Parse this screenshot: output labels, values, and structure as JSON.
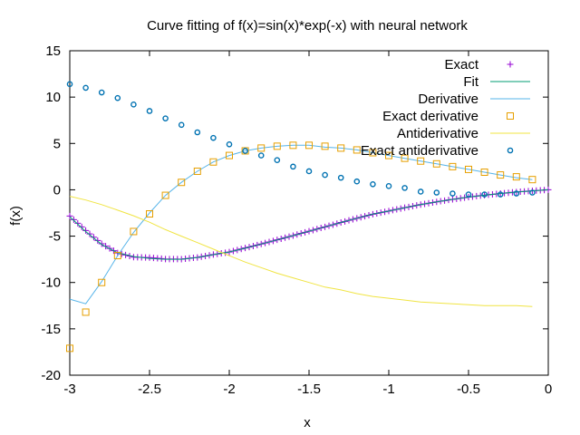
{
  "chart_data": {
    "type": "line",
    "title": "Curve fitting of f(x)=sin(x)*exp(-x) with neural network",
    "xlabel": "x",
    "ylabel": "f(x)",
    "xlim": [
      -3,
      0
    ],
    "ylim": [
      -20,
      15
    ],
    "xticks": [
      -3,
      -2.5,
      -2,
      -1.5,
      -1,
      -0.5,
      0
    ],
    "yticks": [
      -20,
      -15,
      -10,
      -5,
      0,
      5,
      10,
      15
    ],
    "grid": false,
    "legend_position": "top-right",
    "series": [
      {
        "name": "Exact",
        "style": "plus-markers",
        "color": "#9400d3",
        "x": [
          -3.0,
          -2.9,
          -2.8,
          -2.7,
          -2.6,
          -2.5,
          -2.4,
          -2.3,
          -2.2,
          -2.1,
          -2.0,
          -1.9,
          -1.8,
          -1.7,
          -1.6,
          -1.5,
          -1.4,
          -1.3,
          -1.2,
          -1.1,
          -1.0,
          -0.9,
          -0.8,
          -0.7,
          -0.6,
          -0.5,
          -0.4,
          -0.3,
          -0.2,
          -0.1,
          0.0
        ],
        "y": [
          -2.83,
          -4.4,
          -5.83,
          -6.81,
          -7.26,
          -7.31,
          -7.47,
          -7.48,
          -7.3,
          -6.99,
          -6.72,
          -6.28,
          -5.85,
          -5.4,
          -4.94,
          -4.47,
          -4.0,
          -3.53,
          -3.07,
          -2.63,
          -2.29,
          -1.93,
          -1.6,
          -1.3,
          -1.03,
          -0.79,
          -0.58,
          -0.4,
          -0.24,
          -0.11,
          0.0
        ]
      },
      {
        "name": "Fit",
        "style": "line",
        "color": "#009e73",
        "x": [
          -3.0,
          -2.9,
          -2.8,
          -2.7,
          -2.6,
          -2.5,
          -2.4,
          -2.3,
          -2.2,
          -2.1,
          -2.0,
          -1.9,
          -1.8,
          -1.7,
          -1.6,
          -1.5,
          -1.4,
          -1.3,
          -1.2,
          -1.1,
          -1.0,
          -0.9,
          -0.8,
          -0.7,
          -0.6,
          -0.5,
          -0.4,
          -0.3,
          -0.2,
          -0.1,
          0.0
        ],
        "y": [
          -2.9,
          -4.5,
          -5.9,
          -6.8,
          -7.2,
          -7.4,
          -7.5,
          -7.5,
          -7.3,
          -7.0,
          -6.7,
          -6.3,
          -5.85,
          -5.4,
          -4.94,
          -4.47,
          -4.0,
          -3.53,
          -3.07,
          -2.63,
          -2.29,
          -1.93,
          -1.6,
          -1.3,
          -1.03,
          -0.79,
          -0.58,
          -0.4,
          -0.24,
          -0.11,
          0.0
        ]
      },
      {
        "name": "Derivative",
        "style": "line",
        "color": "#56b4e9",
        "x": [
          -3.0,
          -2.9,
          -2.8,
          -2.7,
          -2.6,
          -2.5,
          -2.4,
          -2.3,
          -2.2,
          -2.1,
          -2.0,
          -1.9,
          -1.8,
          -1.7,
          -1.6,
          -1.5,
          -1.4,
          -1.3,
          -1.2,
          -1.1,
          -1.0,
          -0.9,
          -0.8,
          -0.7,
          -0.6,
          -0.5,
          -0.4,
          -0.3,
          -0.2,
          -0.1
        ],
        "y": [
          -11.8,
          -12.3,
          -9.9,
          -7.1,
          -4.6,
          -2.5,
          -0.6,
          0.8,
          2.0,
          3.0,
          3.7,
          4.2,
          4.5,
          4.7,
          4.8,
          4.8,
          4.6,
          4.5,
          4.3,
          4.0,
          3.7,
          3.4,
          3.1,
          2.8,
          2.5,
          2.2,
          1.9,
          1.6,
          1.3,
          1.1
        ]
      },
      {
        "name": "Exact derivative",
        "style": "square-markers",
        "color": "#e69f00",
        "x": [
          -3.0,
          -2.9,
          -2.8,
          -2.7,
          -2.6,
          -2.5,
          -2.4,
          -2.3,
          -2.2,
          -2.1,
          -2.0,
          -1.9,
          -1.8,
          -1.7,
          -1.6,
          -1.5,
          -1.4,
          -1.3,
          -1.2,
          -1.1,
          -1.0,
          -0.9,
          -0.8,
          -0.7,
          -0.6,
          -0.5,
          -0.4,
          -0.3,
          -0.2,
          -0.1
        ],
        "y": [
          -17.1,
          -13.2,
          -10.0,
          -7.1,
          -4.5,
          -2.6,
          -0.6,
          0.8,
          2.0,
          3.0,
          3.7,
          4.2,
          4.5,
          4.7,
          4.8,
          4.8,
          4.7,
          4.5,
          4.3,
          4.0,
          3.7,
          3.4,
          3.1,
          2.8,
          2.5,
          2.2,
          1.9,
          1.6,
          1.4,
          1.1
        ]
      },
      {
        "name": "Antiderivative",
        "style": "line",
        "color": "#f0e442",
        "x": [
          -3.0,
          -2.9,
          -2.8,
          -2.7,
          -2.6,
          -2.5,
          -2.4,
          -2.3,
          -2.2,
          -2.1,
          -2.0,
          -1.9,
          -1.8,
          -1.7,
          -1.6,
          -1.5,
          -1.4,
          -1.3,
          -1.2,
          -1.1,
          -1.0,
          -0.9,
          -0.8,
          -0.7,
          -0.6,
          -0.5,
          -0.4,
          -0.3,
          -0.2,
          -0.1
        ],
        "y": [
          -0.7,
          -1.1,
          -1.6,
          -2.2,
          -2.8,
          -3.5,
          -4.3,
          -5.0,
          -5.7,
          -6.4,
          -7.1,
          -7.8,
          -8.4,
          -9.0,
          -9.5,
          -10.0,
          -10.5,
          -10.8,
          -11.2,
          -11.5,
          -11.7,
          -11.9,
          -12.1,
          -12.2,
          -12.3,
          -12.4,
          -12.5,
          -12.5,
          -12.5,
          -12.6
        ]
      },
      {
        "name": "Exact antiderivative",
        "style": "circle-markers",
        "color": "#0072b2",
        "x": [
          -3.0,
          -2.9,
          -2.8,
          -2.7,
          -2.6,
          -2.5,
          -2.4,
          -2.3,
          -2.2,
          -2.1,
          -2.0,
          -1.9,
          -1.8,
          -1.7,
          -1.6,
          -1.5,
          -1.4,
          -1.3,
          -1.2,
          -1.1,
          -1.0,
          -0.9,
          -0.8,
          -0.7,
          -0.6,
          -0.5,
          -0.4,
          -0.3,
          -0.2,
          -0.1
        ],
        "y": [
          11.4,
          11.0,
          10.5,
          9.9,
          9.2,
          8.5,
          7.7,
          7.0,
          6.2,
          5.6,
          4.9,
          4.2,
          3.7,
          3.2,
          2.5,
          2.0,
          1.6,
          1.3,
          0.9,
          0.6,
          0.4,
          0.2,
          -0.2,
          -0.3,
          -0.4,
          -0.5,
          -0.5,
          -0.5,
          -0.4,
          -0.3
        ]
      }
    ]
  }
}
